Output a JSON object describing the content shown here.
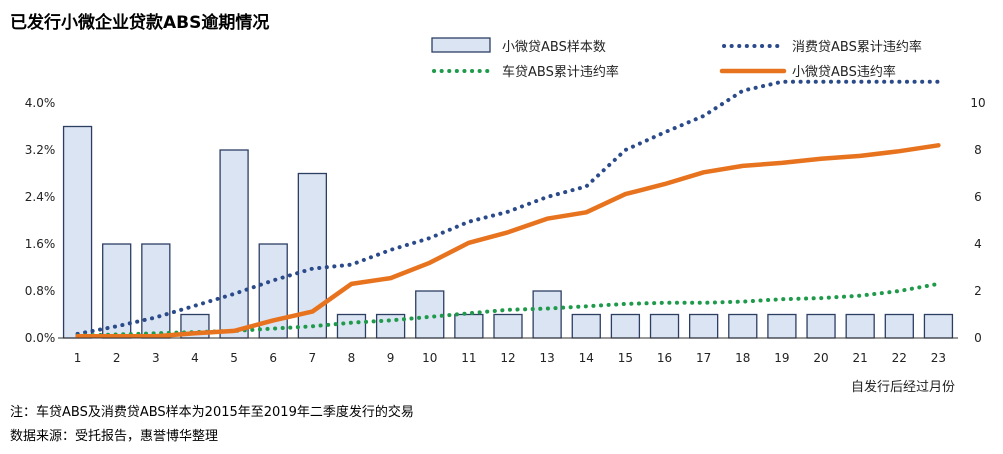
{
  "chart_data": {
    "type": "bar",
    "title": "已发行小微企业贷款ABS逾期情况",
    "xlabel": "自发行后经过月份",
    "categories": [
      "1",
      "2",
      "3",
      "4",
      "5",
      "6",
      "7",
      "8",
      "9",
      "10",
      "11",
      "12",
      "13",
      "14",
      "15",
      "16",
      "17",
      "18",
      "19",
      "20",
      "21",
      "22",
      "23"
    ],
    "y_left": {
      "ylim": [
        0,
        4.0
      ],
      "ticks": [
        "0.0%",
        "0.8%",
        "1.6%",
        "2.4%",
        "3.2%",
        "4.0%"
      ]
    },
    "y_right": {
      "ylim": [
        0,
        10
      ],
      "ticks": [
        "0",
        "2",
        "4",
        "6",
        "8",
        "10"
      ]
    },
    "legend_position": "top-right",
    "grid": false,
    "series": [
      {
        "name": "小微贷ABS样本数",
        "type": "bar",
        "axis": "right",
        "values": [
          9,
          4,
          4,
          1,
          8,
          4,
          7,
          1,
          1,
          2,
          1,
          1,
          2,
          1,
          1,
          1,
          1,
          1,
          1,
          1,
          1,
          1,
          1
        ]
      },
      {
        "name": "消费贷ABS累计违约率",
        "type": "line",
        "style": "dotted",
        "axis": "left",
        "values": [
          0.07,
          0.2,
          0.35,
          0.55,
          0.75,
          0.98,
          1.18,
          1.25,
          1.5,
          1.7,
          1.98,
          2.15,
          2.4,
          2.58,
          3.2,
          3.5,
          3.78,
          4.21,
          4.36,
          4.36,
          4.36,
          4.36,
          4.36
        ]
      },
      {
        "name": "车贷ABS累计违约率",
        "type": "line",
        "style": "dotted",
        "axis": "left",
        "values": [
          0.04,
          0.06,
          0.08,
          0.1,
          0.12,
          0.16,
          0.2,
          0.26,
          0.3,
          0.36,
          0.42,
          0.48,
          0.5,
          0.54,
          0.58,
          0.6,
          0.6,
          0.62,
          0.66,
          0.68,
          0.72,
          0.8,
          0.92
        ]
      },
      {
        "name": "小微贷ABS违约率",
        "type": "line",
        "style": "solid",
        "axis": "left",
        "values": [
          0.03,
          0.03,
          0.03,
          0.08,
          0.12,
          0.3,
          0.45,
          0.92,
          1.02,
          1.28,
          1.62,
          1.8,
          2.03,
          2.14,
          2.45,
          2.62,
          2.82,
          2.93,
          2.98,
          3.05,
          3.1,
          3.18,
          3.28
        ]
      }
    ],
    "colors": {
      "bar_fill": "#dbe4f2",
      "bar_stroke": "#2d3e63",
      "consumer": "#2a4a8a",
      "auto": "#1f9a4b",
      "smb": "#e8731f"
    }
  },
  "notes": [
    "注：车贷ABS及消费贷ABS样本为2015年至2019年二季度发行的交易",
    "数据来源：受托报告，惠誉博华整理"
  ]
}
